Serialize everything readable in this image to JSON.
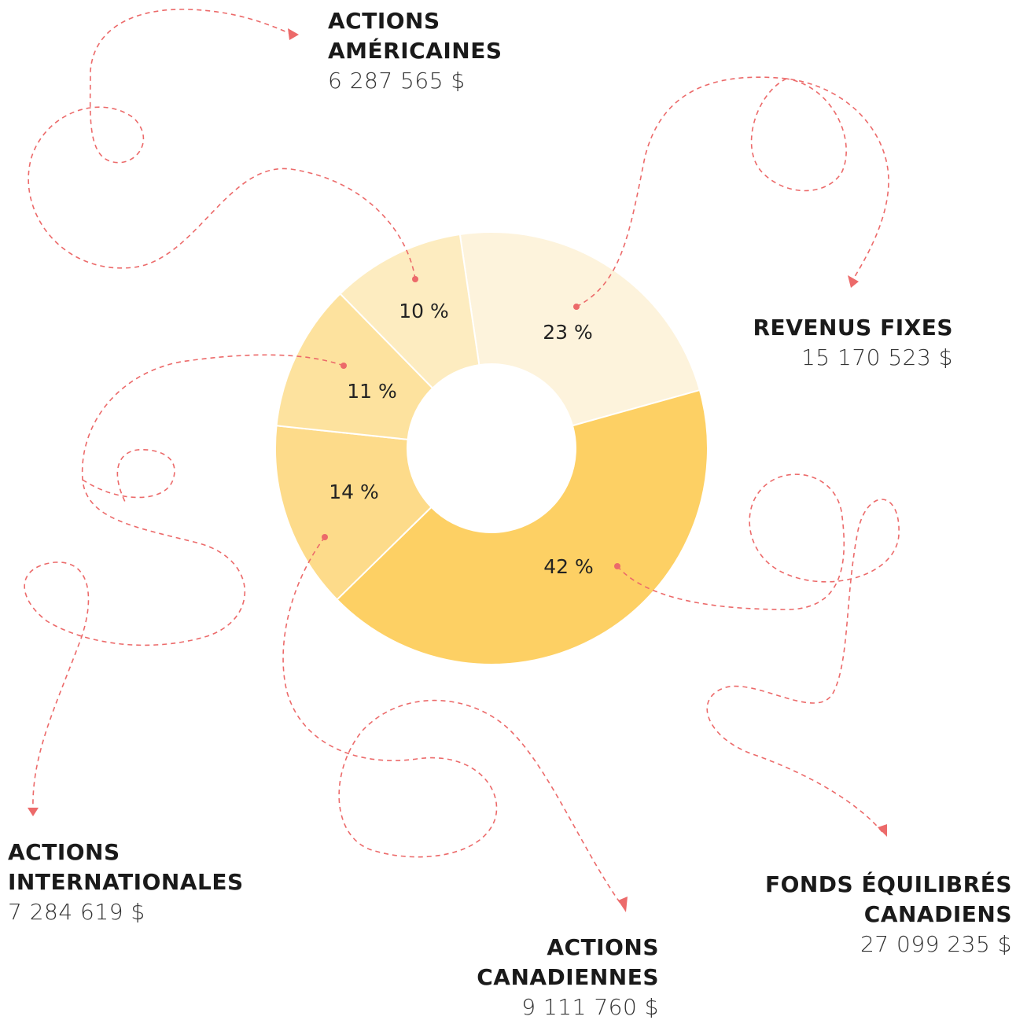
{
  "chart_data": {
    "type": "donut",
    "categories": [
      "REVENUS FIXES",
      "FONDS ÉQUILIBRÉS CANADIENS",
      "ACTIONS CANADIENNES",
      "ACTIONS INTERNATIONALES",
      "ACTIONS AMÉRICAINES"
    ],
    "values": [
      23,
      42,
      14,
      11,
      10
    ],
    "value_labels": [
      "23 %",
      "42 %",
      "14 %",
      "11 %",
      "10 %"
    ],
    "amounts": [
      "15 170 523 $",
      "27 099 235 $",
      "9 111 760 $",
      "7 284 619 $",
      "6 287 565 $"
    ],
    "colors": [
      "#fdf3dc",
      "#fdd064",
      "#fddb8a",
      "#fde29e",
      "#fdecc0"
    ]
  }
}
